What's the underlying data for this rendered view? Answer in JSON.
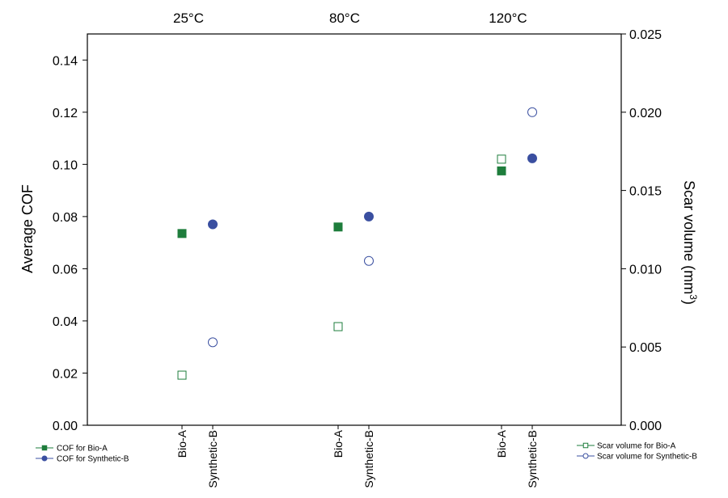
{
  "chart_data": {
    "type": "scatter",
    "temperatures": [
      "25°C",
      "80°C",
      "120°C"
    ],
    "categories": [
      "Bio-A",
      "Synthetic-B",
      "Bio-A",
      "Synthetic-B",
      "Bio-A",
      "Synthetic-B"
    ],
    "ylabel": "Average COF",
    "y2label_main": "Scar volume (mm",
    "y2label_sup": "3",
    "y2label_close": ")",
    "ylim": [
      0,
      0.15
    ],
    "y2lim": [
      0,
      0.025
    ],
    "yticks": [
      "0.00",
      "0.02",
      "0.04",
      "0.06",
      "0.08",
      "0.10",
      "0.12",
      "0.14"
    ],
    "y2ticks": [
      "0.000",
      "0.005",
      "0.010",
      "0.015",
      "0.020",
      "0.025"
    ],
    "series": [
      {
        "name": "COF for Bio-A",
        "axis": "left",
        "marker": "square-filled",
        "color": "#1e7d3c",
        "points": [
          {
            "group": 0,
            "cat": "Bio-A",
            "y": 0.0735
          },
          {
            "group": 1,
            "cat": "Bio-A",
            "y": 0.076
          },
          {
            "group": 2,
            "cat": "Bio-A",
            "y": 0.0975
          }
        ]
      },
      {
        "name": "COF for Synthetic-B",
        "axis": "left",
        "marker": "circle-filled",
        "color": "#3a4fa0",
        "points": [
          {
            "group": 0,
            "cat": "Synthetic-B",
            "y": 0.077
          },
          {
            "group": 1,
            "cat": "Synthetic-B",
            "y": 0.08
          },
          {
            "group": 2,
            "cat": "Synthetic-B",
            "y": 0.1023
          }
        ]
      },
      {
        "name": "Scar volume for Bio-A",
        "axis": "right",
        "marker": "square-open",
        "color": "#1e7d3c",
        "points": [
          {
            "group": 0,
            "cat": "Bio-A",
            "y": 0.0032
          },
          {
            "group": 1,
            "cat": "Bio-A",
            "y": 0.0063
          },
          {
            "group": 2,
            "cat": "Bio-A",
            "y": 0.017
          }
        ]
      },
      {
        "name": "Scar volume for Synthetic-B",
        "axis": "right",
        "marker": "circle-open",
        "color": "#3a4fa0",
        "points": [
          {
            "group": 0,
            "cat": "Synthetic-B",
            "y": 0.0053
          },
          {
            "group": 1,
            "cat": "Synthetic-B",
            "y": 0.0105
          },
          {
            "group": 2,
            "cat": "Synthetic-B",
            "y": 0.02
          }
        ]
      }
    ],
    "legend_left": [
      "COF for Bio-A",
      "COF for Synthetic-B"
    ],
    "legend_right": [
      "Scar volume for Bio-A",
      "Scar volume for Synthetic-B"
    ]
  }
}
